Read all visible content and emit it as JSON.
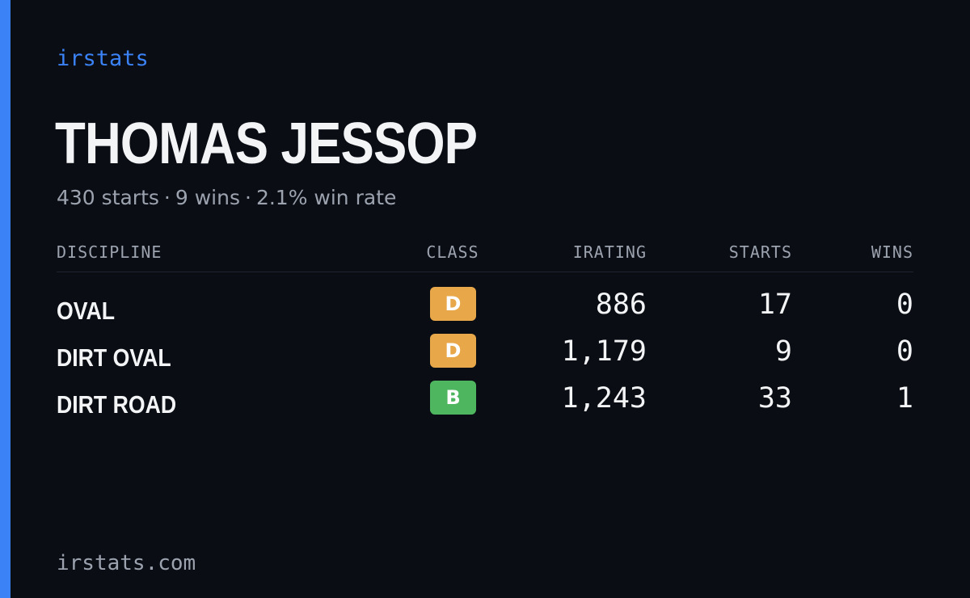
{
  "brand": "irstats",
  "driver": {
    "name": "THOMAS JESSOP"
  },
  "summary": {
    "starts": "430 starts",
    "wins": "9 wins",
    "win_rate": "2.1% win rate",
    "separator": "·"
  },
  "table": {
    "headers": {
      "discipline": "DISCIPLINE",
      "class": "CLASS",
      "irating": "IRATING",
      "starts": "STARTS",
      "wins": "WINS"
    },
    "rows": [
      {
        "discipline": "OVAL",
        "class": "D",
        "class_color": "#e8a849",
        "irating": "886",
        "starts": "17",
        "wins": "0"
      },
      {
        "discipline": "DIRT OVAL",
        "class": "D",
        "class_color": "#e8a849",
        "irating": "1,179",
        "starts": "9",
        "wins": "0"
      },
      {
        "discipline": "DIRT ROAD",
        "class": "B",
        "class_color": "#4fb660",
        "irating": "1,243",
        "starts": "33",
        "wins": "1"
      }
    ]
  },
  "footer": {
    "url": "irstats.com"
  },
  "colors": {
    "background": "#0a0d14",
    "accent": "#3b82f6",
    "muted_text": "#9ca3af",
    "primary_text": "#f3f4f6"
  }
}
